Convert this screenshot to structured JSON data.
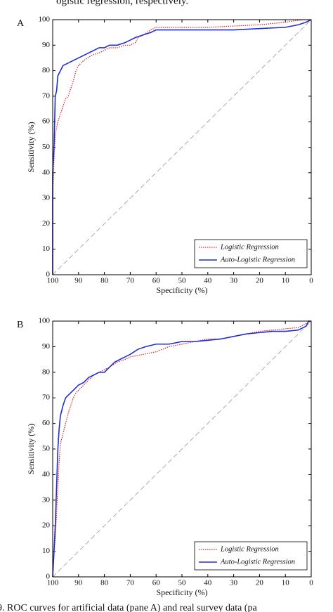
{
  "text_above": "ogistic regression, respectively.",
  "caption": "9. ROC curves for artificial data (pane A) and real survey data (pa",
  "chart_data": [
    {
      "type": "line",
      "panel_label": "A",
      "x_label": "Specificity (%)",
      "y_label": "Sensitivity (%)",
      "xlim": [
        100,
        0
      ],
      "ylim": [
        0,
        100
      ],
      "xticks": [
        100,
        90,
        80,
        70,
        60,
        50,
        40,
        30,
        20,
        10,
        0
      ],
      "yticks": [
        0,
        10,
        20,
        30,
        40,
        50,
        60,
        70,
        80,
        90,
        100
      ],
      "legend": "lower right",
      "series": [
        {
          "name": "Logistic Regression",
          "color": "#e02020",
          "style": "dotted",
          "x": [
            100,
            100,
            99.5,
            99,
            98,
            97,
            96,
            95,
            94,
            93,
            92,
            91,
            90,
            88,
            85,
            82,
            80,
            78,
            75,
            72,
            70,
            68,
            67,
            65,
            62,
            60,
            50,
            40,
            30,
            20,
            10,
            7,
            3,
            0
          ],
          "values": [
            0,
            30,
            45,
            55,
            60,
            63,
            66,
            69,
            70,
            73,
            76,
            80,
            82,
            84,
            86,
            87,
            88,
            89,
            89,
            90,
            90,
            91,
            93,
            94,
            96,
            97,
            97,
            97,
            97.5,
            98,
            99,
            99.5,
            100,
            100
          ]
        },
        {
          "name": "Auto-Logistic Regression",
          "color": "#1f2fd0",
          "style": "solid",
          "x": [
            100,
            100,
            99.5,
            99,
            98.5,
            98,
            97,
            96,
            94,
            92,
            90,
            88,
            86,
            84,
            82,
            80,
            78,
            75,
            72,
            70,
            68,
            65,
            62,
            60,
            50,
            40,
            30,
            20,
            10,
            5,
            2,
            0
          ],
          "values": [
            0,
            40,
            50,
            70,
            72,
            78,
            80,
            82,
            83,
            84,
            85,
            86,
            87,
            88,
            89,
            89,
            90,
            90,
            91,
            92,
            93,
            94,
            95,
            96,
            96,
            96,
            96,
            96.5,
            97,
            98,
            99,
            100
          ]
        }
      ]
    },
    {
      "type": "line",
      "panel_label": "B",
      "x_label": "Specificity (%)",
      "y_label": "Sensitivity (%)",
      "xlim": [
        100,
        0
      ],
      "ylim": [
        0,
        100
      ],
      "xticks": [
        100,
        90,
        80,
        70,
        60,
        50,
        40,
        30,
        20,
        10,
        0
      ],
      "yticks": [
        0,
        10,
        20,
        30,
        40,
        50,
        60,
        70,
        80,
        90,
        100
      ],
      "legend": "lower right",
      "series": [
        {
          "name": "Logistic Regression",
          "color": "#e02020",
          "style": "dotted",
          "x": [
            100,
            99.5,
            99,
            98.5,
            98,
            97.5,
            97,
            96,
            95,
            94,
            93,
            92,
            91,
            90,
            88,
            86,
            84,
            82,
            80,
            78,
            75,
            72,
            70,
            65,
            60,
            55,
            50,
            45,
            40,
            35,
            30,
            25,
            20,
            15,
            10,
            5,
            2,
            0
          ],
          "values": [
            0,
            8,
            15,
            25,
            35,
            45,
            52,
            56,
            60,
            64,
            67,
            70,
            72,
            73,
            75,
            77,
            79,
            80,
            81,
            82,
            84,
            85,
            86,
            87,
            88,
            90,
            91,
            92,
            93,
            93,
            94,
            95,
            96,
            96.5,
            97,
            97.5,
            99,
            100
          ]
        },
        {
          "name": "Auto-Logistic Regression",
          "color": "#1f2fd0",
          "style": "solid",
          "x": [
            100,
            99.5,
            99,
            98.5,
            98,
            97.5,
            97,
            96,
            95,
            94,
            93,
            92,
            90,
            88,
            86,
            84,
            82,
            80,
            78,
            76,
            74,
            72,
            70,
            67,
            64,
            60,
            55,
            50,
            45,
            40,
            35,
            30,
            25,
            20,
            15,
            10,
            5,
            2,
            1,
            0
          ],
          "values": [
            0,
            10,
            20,
            35,
            50,
            58,
            63,
            67,
            70,
            71,
            72,
            73,
            75,
            76,
            78,
            79,
            80,
            80,
            82,
            84,
            85,
            86,
            87,
            89,
            90,
            91,
            91,
            92,
            92,
            92.5,
            93,
            94,
            95,
            95.5,
            96,
            96,
            96.5,
            98,
            100,
            100
          ]
        }
      ]
    }
  ]
}
